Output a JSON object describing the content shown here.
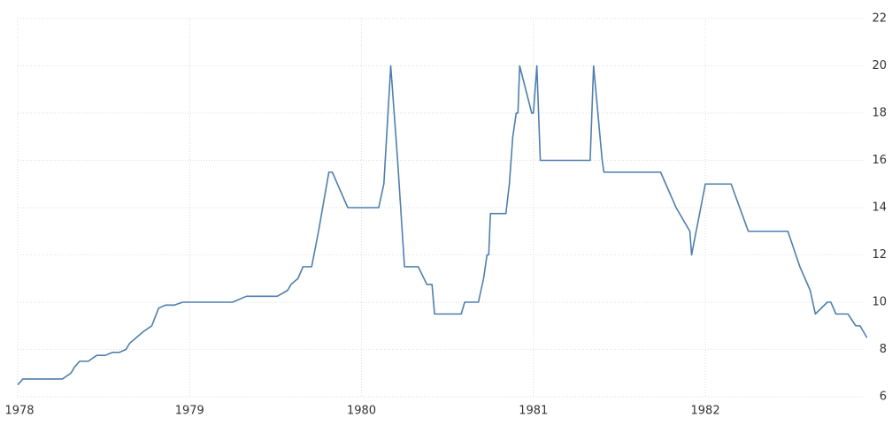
{
  "chart_data": {
    "type": "line",
    "x": [
      1978.0,
      1978.03,
      1978.26,
      1978.31,
      1978.33,
      1978.36,
      1978.41,
      1978.46,
      1978.51,
      1978.55,
      1978.59,
      1978.63,
      1978.65,
      1978.69,
      1978.73,
      1978.78,
      1978.82,
      1978.86,
      1978.91,
      1978.96,
      1979.0,
      1979.25,
      1979.33,
      1979.51,
      1979.57,
      1979.59,
      1979.63,
      1979.66,
      1979.71,
      1979.75,
      1979.81,
      1979.83,
      1979.92,
      1980.1,
      1980.13,
      1980.17,
      1980.21,
      1980.25,
      1980.33,
      1980.38,
      1980.41,
      1980.425,
      1980.58,
      1980.6,
      1980.68,
      1980.71,
      1980.73,
      1980.74,
      1980.75,
      1980.84,
      1980.86,
      1980.88,
      1980.9,
      1980.91,
      1980.92,
      1980.99,
      1981.0,
      1981.02,
      1981.04,
      1981.33,
      1981.35,
      1981.4,
      1981.41,
      1981.74,
      1981.83,
      1981.91,
      1981.92,
      1982.0,
      1982.15,
      1982.25,
      1982.48,
      1982.55,
      1982.61,
      1982.64,
      1982.71,
      1982.73,
      1982.76,
      1982.83,
      1982.875,
      1982.9,
      1982.94
    ],
    "series": [
      {
        "color": "#4e7fae",
        "values": [
          6.5,
          6.75,
          6.75,
          7.0,
          7.25,
          7.5,
          7.5,
          7.75,
          7.75,
          7.875,
          7.875,
          8.0,
          8.25,
          8.5,
          8.75,
          9.0,
          9.75,
          9.875,
          9.875,
          10.0,
          10.0,
          10.0,
          10.25,
          10.25,
          10.5,
          10.75,
          11.0,
          11.5,
          11.5,
          13.0,
          15.5,
          15.5,
          14.0,
          14.0,
          15.0,
          20.0,
          16.0,
          11.5,
          11.5,
          10.75,
          10.75,
          9.5,
          9.5,
          10.0,
          10.0,
          11.0,
          12.0,
          12.0,
          13.75,
          13.75,
          15.0,
          17.0,
          18.0,
          18.0,
          20.0,
          18.0,
          18.0,
          20.0,
          16.0,
          16.0,
          20.0,
          16.0,
          15.5,
          15.5,
          14.0,
          13.0,
          12.0,
          15.0,
          15.0,
          13.0,
          13.0,
          11.5,
          10.5,
          9.5,
          10.0,
          10.0,
          9.5,
          9.5,
          9.0,
          9.0,
          8.5
        ]
      }
    ],
    "xlim": [
      1978,
      1982.95
    ],
    "xticks": [
      1978,
      1979,
      1980,
      1981,
      1982
    ],
    "ylim": [
      6,
      22
    ],
    "yticks": [
      6,
      8,
      10,
      12,
      14,
      16,
      18,
      20,
      22
    ],
    "grid": true
  }
}
